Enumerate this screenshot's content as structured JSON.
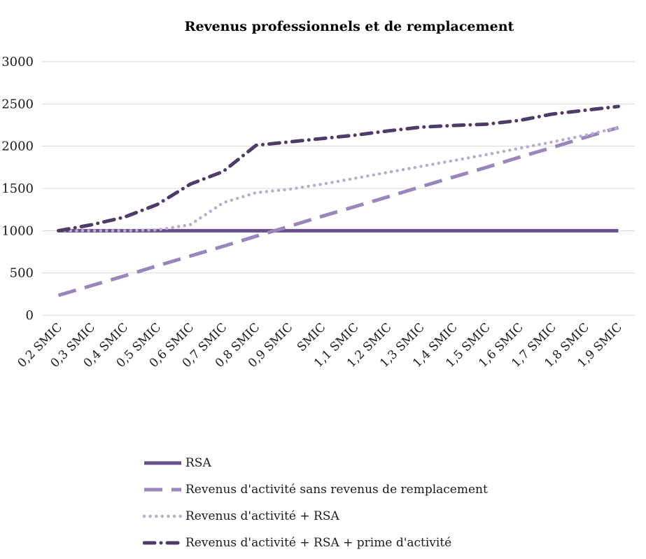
{
  "chart_data": {
    "type": "line",
    "title": "Revenus professionnels et de remplacement",
    "categories": [
      "0,2 SMIC",
      "0,3 SMIC",
      "0,4 SMIC",
      "0,5 SMIC",
      "0,6 SMIC",
      "0,7 SMIC",
      "0,8 SMIC",
      "0,9 SMIC",
      "SMIC",
      "1,1 SMIC",
      "1,2 SMIC",
      "1,3 SMIC",
      "1,4 SMIC",
      "1,5 SMIC",
      "1,6 SMIC",
      "1,7 SMIC",
      "1,8 SMIC",
      "1,9 SMIC"
    ],
    "xlabel": "",
    "ylabel": "",
    "ylim": [
      0,
      3000
    ],
    "ytick_step": 500,
    "grid": true,
    "legend_position": "bottom-left",
    "background": "#ffffff",
    "gridline_color": "#d8d8d8",
    "series": [
      {
        "name": "RSA",
        "style": "solid",
        "color": "#6B4F8C",
        "width": 5,
        "values": [
          1000,
          1000,
          1000,
          1000,
          1000,
          1000,
          1000,
          1000,
          1000,
          1000,
          1000,
          1000,
          1000,
          1000,
          1000,
          1000,
          1000,
          1000
        ]
      },
      {
        "name": "Revenus d'activité sans revenus de remplacement",
        "style": "long-dash",
        "color": "#9A86BD",
        "width": 5,
        "values": [
          235,
          350,
          465,
          585,
          700,
          815,
          935,
          1050,
          1170,
          1285,
          1400,
          1520,
          1635,
          1750,
          1870,
          1985,
          2105,
          2220
        ]
      },
      {
        "name": "Revenus d'activité + RSA",
        "style": "dotted",
        "color": "#B9ADD2",
        "width": 4.5,
        "values": [
          1000,
          1000,
          1000,
          1010,
          1070,
          1330,
          1450,
          1490,
          1550,
          1620,
          1690,
          1760,
          1830,
          1900,
          1975,
          2050,
          2130,
          2220
        ]
      },
      {
        "name": "Revenus d'activité + RSA + prime d'activité",
        "style": "dash-dot",
        "color": "#4E3B67",
        "width": 5,
        "values": [
          1000,
          1070,
          1160,
          1310,
          1550,
          1700,
          2010,
          2050,
          2090,
          2130,
          2180,
          2225,
          2245,
          2260,
          2305,
          2380,
          2425,
          2470
        ]
      }
    ]
  }
}
